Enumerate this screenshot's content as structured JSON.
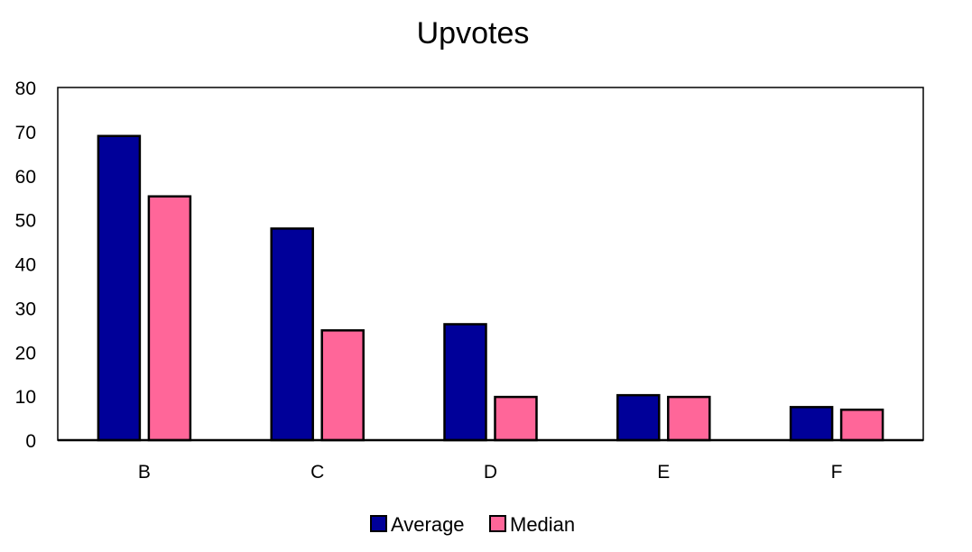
{
  "chart_data": {
    "type": "bar",
    "title": "Upvotes",
    "xlabel": "",
    "ylabel": "",
    "categories": [
      "B",
      "C",
      "D",
      "E",
      "F"
    ],
    "series": [
      {
        "name": "Average",
        "color": "#000099",
        "values": [
          69,
          48,
          26.3,
          10.2,
          7.5
        ]
      },
      {
        "name": "Median",
        "color": "#ff6699",
        "values": [
          55.3,
          24.9,
          9.8,
          9.8,
          6.9
        ]
      }
    ],
    "ylim": [
      0,
      80
    ],
    "yticks": [
      "0",
      "10",
      "20",
      "30",
      "40",
      "50",
      "60",
      "70",
      "80"
    ],
    "grid": false,
    "legend_position": "bottom"
  }
}
